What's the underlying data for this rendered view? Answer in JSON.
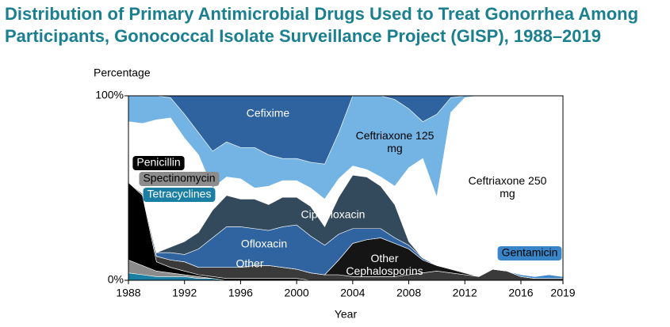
{
  "chart_data": {
    "type": "stacked_area",
    "title": "Distribution of Primary Antimicrobial Drugs Used to Treat Gonorrhea Among Participants, Gonococcal Isolate Surveillance Project (GISP), 1988–2019",
    "y_label": "Percentage",
    "x_label": "Year",
    "x": [
      1988,
      1989,
      1990,
      1991,
      1992,
      1993,
      1994,
      1995,
      1996,
      1997,
      1998,
      1999,
      2000,
      2001,
      2002,
      2003,
      2004,
      2005,
      2006,
      2007,
      2008,
      2009,
      2010,
      2011,
      2012,
      2013,
      2014,
      2015,
      2016,
      2017,
      2018,
      2019
    ],
    "xlim": [
      1988,
      2019
    ],
    "xticks": [
      1988,
      1992,
      1996,
      2000,
      2004,
      2008,
      2012,
      2016,
      2019
    ],
    "ylim": [
      0,
      100
    ],
    "yticks": [
      {
        "value": 0,
        "label": "0%"
      },
      {
        "value": 100,
        "label": "100%"
      }
    ],
    "series": [
      {
        "name": "Tetracyclines",
        "color": "#1a7fa3",
        "values": [
          4,
          3,
          2,
          2,
          2,
          1,
          1,
          0,
          0,
          0,
          0,
          0,
          0,
          0,
          0,
          0,
          0,
          0,
          0,
          0,
          0,
          0,
          0,
          0,
          0,
          0,
          0,
          0,
          0,
          0,
          0,
          0
        ]
      },
      {
        "name": "Spectinomycin",
        "color": "#8c8c8c",
        "values": [
          7,
          5,
          3,
          2,
          1,
          1,
          0,
          0,
          0,
          0,
          0,
          0,
          0,
          0,
          0,
          0,
          0,
          0,
          0,
          0,
          0,
          0,
          0,
          0,
          0,
          0,
          0,
          0,
          0,
          0,
          0,
          0
        ]
      },
      {
        "name": "Penicillin",
        "color": "#000000",
        "values": [
          42,
          38,
          5,
          3,
          2,
          1,
          1,
          1,
          1,
          1,
          1,
          1,
          1,
          0,
          0,
          0,
          0,
          0,
          0,
          0,
          0,
          0,
          0,
          0,
          0,
          0,
          0,
          0,
          0,
          0,
          0,
          0
        ]
      },
      {
        "name": "Other",
        "color": "#3a3a3a",
        "values": [
          0,
          1,
          3,
          4,
          5,
          4,
          5,
          6,
          6,
          7,
          7,
          6,
          5,
          4,
          3,
          3,
          2,
          2,
          2,
          2,
          3,
          4,
          5,
          4,
          3,
          2,
          6,
          5,
          2,
          1,
          1,
          1
        ]
      },
      {
        "name": "Other Cephalosporins",
        "color": "#151515",
        "values": [
          0,
          0,
          0,
          0,
          0,
          0,
          0,
          0,
          0,
          0,
          0,
          0,
          0,
          0,
          0,
          8,
          18,
          20,
          21,
          18,
          14,
          7,
          3,
          2,
          1,
          0,
          0,
          0,
          0,
          0,
          0,
          0
        ]
      },
      {
        "name": "Gentamicin",
        "color": "#3a85c8",
        "values": [
          0,
          0,
          0,
          0,
          0,
          0,
          0,
          0,
          0,
          0,
          0,
          0,
          0,
          0,
          0,
          0,
          0,
          0,
          0,
          0,
          0,
          0,
          0,
          0,
          0,
          0,
          0,
          0,
          1,
          1,
          2,
          1
        ]
      },
      {
        "name": "Ofloxacin",
        "color": "#2f64a0",
        "values": [
          0,
          0,
          2,
          4,
          4,
          10,
          16,
          22,
          22,
          20,
          19,
          22,
          24,
          20,
          16,
          14,
          8,
          6,
          5,
          3,
          2,
          1,
          0,
          0,
          0,
          0,
          0,
          0,
          0,
          0,
          0,
          0
        ]
      },
      {
        "name": "Ciprofloxacin",
        "color": "#334a5c",
        "values": [
          0,
          0,
          0,
          3,
          7,
          9,
          15,
          17,
          15,
          16,
          14,
          16,
          15,
          16,
          10,
          20,
          29,
          28,
          23,
          18,
          2,
          0,
          0,
          0,
          0,
          0,
          0,
          0,
          0,
          0,
          0,
          0
        ]
      },
      {
        "name": "Ceftriaxone 250 mg",
        "color": "#ffffff",
        "values": [
          33,
          38,
          72,
          70,
          56,
          42,
          12,
          10,
          11,
          6,
          10,
          9,
          9,
          10,
          15,
          10,
          5,
          4,
          5,
          10,
          40,
          54,
          37,
          85,
          95,
          98,
          94,
          95,
          97,
          98,
          97,
          98
        ]
      },
      {
        "name": "Ceftriaxone 125 mg",
        "color": "#74b4e4",
        "values": [
          14,
          15,
          13,
          11,
          13,
          12,
          20,
          19,
          17,
          22,
          17,
          12,
          12,
          14,
          19,
          25,
          38,
          40,
          44,
          47,
          32,
          20,
          45,
          8,
          1,
          0,
          0,
          0,
          0,
          0,
          0,
          0
        ]
      },
      {
        "name": "Cefixime",
        "color": "#2e63a0",
        "values": [
          0,
          0,
          0,
          1,
          10,
          20,
          30,
          25,
          28,
          28,
          32,
          34,
          34,
          36,
          37,
          20,
          0,
          0,
          0,
          2,
          7,
          14,
          10,
          1,
          0,
          0,
          0,
          0,
          0,
          0,
          0,
          0
        ]
      }
    ]
  }
}
